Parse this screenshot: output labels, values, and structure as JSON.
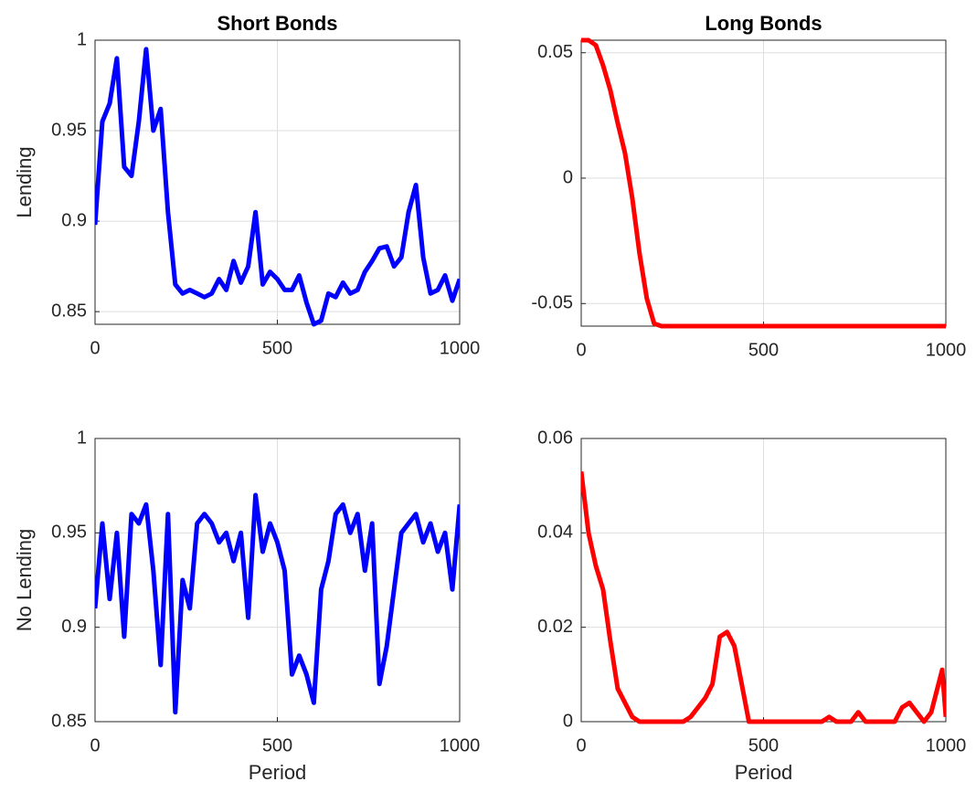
{
  "chart_data": [
    {
      "type": "line",
      "title": "Short Bonds",
      "ylabel": "Lending",
      "color": "#0000ff",
      "x": [
        0,
        20,
        40,
        60,
        80,
        100,
        120,
        140,
        160,
        180,
        200,
        220,
        240,
        260,
        280,
        300,
        320,
        340,
        360,
        380,
        400,
        420,
        440,
        460,
        480,
        500,
        520,
        540,
        560,
        580,
        600,
        620,
        640,
        660,
        680,
        700,
        720,
        740,
        760,
        780,
        800,
        820,
        840,
        860,
        880,
        900,
        920,
        940,
        960,
        980,
        1000
      ],
      "values": [
        0.898,
        0.955,
        0.965,
        0.99,
        0.93,
        0.925,
        0.955,
        0.995,
        0.95,
        0.962,
        0.905,
        0.865,
        0.86,
        0.862,
        0.86,
        0.858,
        0.86,
        0.868,
        0.862,
        0.878,
        0.866,
        0.875,
        0.905,
        0.865,
        0.872,
        0.868,
        0.862,
        0.862,
        0.87,
        0.855,
        0.843,
        0.845,
        0.86,
        0.858,
        0.866,
        0.86,
        0.862,
        0.872,
        0.878,
        0.885,
        0.886,
        0.875,
        0.88,
        0.905,
        0.92,
        0.88,
        0.86,
        0.862,
        0.87,
        0.856,
        0.868
      ],
      "xlim": [
        0,
        1000
      ],
      "xticks": [
        0,
        500,
        1000
      ],
      "ylim": [
        0.843,
        1
      ],
      "yticks": [
        0.85,
        0.9,
        0.95,
        1
      ],
      "grid": true
    },
    {
      "type": "line",
      "title": "Long Bonds",
      "color": "#ff0000",
      "x": [
        0,
        20,
        40,
        60,
        80,
        100,
        120,
        140,
        160,
        180,
        200,
        220,
        400,
        600,
        800,
        1000
      ],
      "values": [
        0.055,
        0.055,
        0.053,
        0.045,
        0.035,
        0.022,
        0.01,
        -0.008,
        -0.03,
        -0.048,
        -0.058,
        -0.059,
        -0.059,
        -0.059,
        -0.059,
        -0.059
      ],
      "xlim": [
        0,
        1000
      ],
      "xticks": [
        0,
        500,
        1000
      ],
      "ylim": [
        -0.059,
        0.055
      ],
      "yticks": [
        -0.05,
        0,
        0.05
      ],
      "grid": true
    },
    {
      "type": "line",
      "ylabel": "No Lending",
      "xlabel": "Period",
      "color": "#0000ff",
      "x": [
        0,
        20,
        40,
        60,
        80,
        100,
        120,
        140,
        160,
        180,
        200,
        220,
        240,
        260,
        280,
        300,
        320,
        340,
        360,
        380,
        400,
        420,
        440,
        460,
        480,
        500,
        520,
        540,
        560,
        580,
        600,
        620,
        640,
        660,
        680,
        700,
        720,
        740,
        760,
        780,
        800,
        820,
        840,
        860,
        880,
        900,
        920,
        940,
        960,
        980,
        1000
      ],
      "values": [
        0.91,
        0.955,
        0.915,
        0.95,
        0.895,
        0.96,
        0.955,
        0.965,
        0.93,
        0.88,
        0.96,
        0.855,
        0.925,
        0.91,
        0.955,
        0.96,
        0.955,
        0.945,
        0.95,
        0.935,
        0.95,
        0.905,
        0.97,
        0.94,
        0.955,
        0.945,
        0.93,
        0.875,
        0.885,
        0.875,
        0.86,
        0.92,
        0.935,
        0.96,
        0.965,
        0.95,
        0.96,
        0.93,
        0.955,
        0.87,
        0.89,
        0.92,
        0.95,
        0.955,
        0.96,
        0.945,
        0.955,
        0.94,
        0.95,
        0.92,
        0.965
      ],
      "xlim": [
        0,
        1000
      ],
      "xticks": [
        0,
        500,
        1000
      ],
      "ylim": [
        0.85,
        1
      ],
      "yticks": [
        0.85,
        0.9,
        0.95,
        1
      ],
      "grid": true
    },
    {
      "type": "line",
      "xlabel": "Period",
      "color": "#ff0000",
      "x": [
        0,
        20,
        40,
        60,
        80,
        100,
        120,
        140,
        160,
        280,
        300,
        320,
        340,
        360,
        380,
        400,
        420,
        440,
        460,
        660,
        680,
        700,
        740,
        760,
        780,
        860,
        880,
        900,
        920,
        940,
        960,
        980,
        990,
        1000
      ],
      "values": [
        0.053,
        0.04,
        0.033,
        0.028,
        0.017,
        0.007,
        0.004,
        0.001,
        0,
        0,
        0.001,
        0.003,
        0.005,
        0.008,
        0.018,
        0.019,
        0.016,
        0.008,
        0,
        0,
        0.001,
        0,
        0,
        0.002,
        0,
        0,
        0.003,
        0.004,
        0.002,
        0,
        0.002,
        0.008,
        0.011,
        0.001
      ],
      "xlim": [
        0,
        1000
      ],
      "xticks": [
        0,
        500,
        1000
      ],
      "ylim": [
        0,
        0.06
      ],
      "yticks": [
        0,
        0.02,
        0.04,
        0.06
      ],
      "grid": true
    }
  ]
}
